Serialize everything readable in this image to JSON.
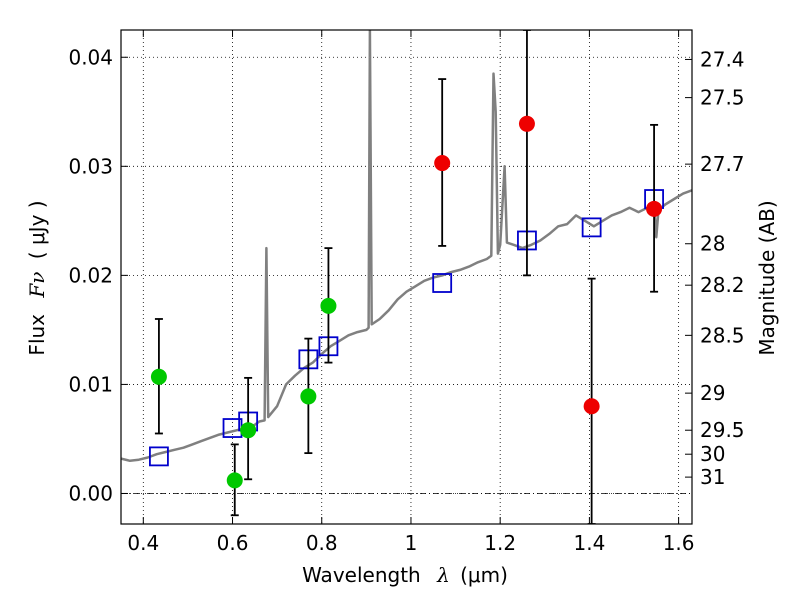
{
  "chart_data": {
    "type": "scatter",
    "xlabel": "Wavelength",
    "xlabel_symbol": "λ",
    "xlabel_unit": "(μm)",
    "ylabel": "Flux",
    "ylabel_symbol": "Fν",
    "ylabel_unit": "( μJy )",
    "y2label": "Magnitude (AB)",
    "xlim": [
      0.35,
      1.63
    ],
    "ylim": [
      -0.0028,
      0.0425
    ],
    "grid": true,
    "grid_style": "dotted",
    "x_ticks": [
      0.4,
      0.6,
      0.8,
      1.0,
      1.2,
      1.4,
      1.6
    ],
    "x_tick_labels": [
      "0.4",
      "0.6",
      "0.8",
      "1",
      "1.2",
      "1.4",
      "1.6"
    ],
    "y_ticks": [
      0.0,
      0.01,
      0.02,
      0.03,
      0.04
    ],
    "y_tick_labels": [
      "0.00",
      "0.01",
      "0.02",
      "0.03",
      "0.04"
    ],
    "y2_ticks": [
      {
        "label": "27.4",
        "flux": 0.0398
      },
      {
        "label": "27.5",
        "flux": 0.0363
      },
      {
        "label": "27.7",
        "flux": 0.0302
      },
      {
        "label": "28",
        "flux": 0.0229
      },
      {
        "label": "28.2",
        "flux": 0.0191
      },
      {
        "label": "28.5",
        "flux": 0.0145
      },
      {
        "label": "29",
        "flux": 0.0092
      },
      {
        "label": "29.5",
        "flux": 0.0058
      },
      {
        "label": "30",
        "flux": 0.0036
      },
      {
        "label": "31",
        "flux": 0.0015
      }
    ],
    "series": [
      {
        "marker": "line",
        "color": "#808080",
        "points": [
          [
            0.35,
            0.0032
          ],
          [
            0.37,
            0.003
          ],
          [
            0.39,
            0.0031
          ],
          [
            0.41,
            0.0033
          ],
          [
            0.43,
            0.0036
          ],
          [
            0.45,
            0.0038
          ],
          [
            0.47,
            0.004
          ],
          [
            0.49,
            0.0042
          ],
          [
            0.51,
            0.0045
          ],
          [
            0.53,
            0.0048
          ],
          [
            0.55,
            0.0051
          ],
          [
            0.57,
            0.0054
          ],
          [
            0.59,
            0.0056
          ],
          [
            0.61,
            0.0058
          ],
          [
            0.63,
            0.006
          ],
          [
            0.65,
            0.0063
          ],
          [
            0.66,
            0.0066
          ],
          [
            0.672,
            0.0067
          ],
          [
            0.676,
            0.0225
          ],
          [
            0.68,
            0.007
          ],
          [
            0.7,
            0.008
          ],
          [
            0.72,
            0.01
          ],
          [
            0.74,
            0.0108
          ],
          [
            0.76,
            0.0115
          ],
          [
            0.78,
            0.012
          ],
          [
            0.8,
            0.0128
          ],
          [
            0.82,
            0.0135
          ],
          [
            0.84,
            0.014
          ],
          [
            0.86,
            0.0145
          ],
          [
            0.88,
            0.0148
          ],
          [
            0.9,
            0.015
          ],
          [
            0.905,
            0.0152
          ],
          [
            0.908,
            0.0425
          ],
          [
            0.912,
            0.0155
          ],
          [
            0.93,
            0.016
          ],
          [
            0.95,
            0.0168
          ],
          [
            0.97,
            0.0178
          ],
          [
            0.99,
            0.0185
          ],
          [
            1.01,
            0.019
          ],
          [
            1.03,
            0.0195
          ],
          [
            1.05,
            0.0198
          ],
          [
            1.07,
            0.02
          ],
          [
            1.09,
            0.0203
          ],
          [
            1.11,
            0.0205
          ],
          [
            1.13,
            0.0208
          ],
          [
            1.15,
            0.0212
          ],
          [
            1.17,
            0.0215
          ],
          [
            1.18,
            0.0218
          ],
          [
            1.185,
            0.0385
          ],
          [
            1.19,
            0.035
          ],
          [
            1.195,
            0.022
          ],
          [
            1.2,
            0.0228
          ],
          [
            1.21,
            0.03
          ],
          [
            1.215,
            0.023
          ],
          [
            1.23,
            0.0228
          ],
          [
            1.25,
            0.0225
          ],
          [
            1.27,
            0.0228
          ],
          [
            1.29,
            0.0232
          ],
          [
            1.31,
            0.0238
          ],
          [
            1.33,
            0.0245
          ],
          [
            1.35,
            0.0247
          ],
          [
            1.37,
            0.0255
          ],
          [
            1.39,
            0.025
          ],
          [
            1.41,
            0.0245
          ],
          [
            1.43,
            0.025
          ],
          [
            1.45,
            0.0255
          ],
          [
            1.47,
            0.0258
          ],
          [
            1.49,
            0.0262
          ],
          [
            1.51,
            0.0258
          ],
          [
            1.53,
            0.0262
          ],
          [
            1.545,
            0.0265
          ],
          [
            1.55,
            0.0235
          ],
          [
            1.555,
            0.026
          ],
          [
            1.57,
            0.0265
          ],
          [
            1.59,
            0.027
          ],
          [
            1.61,
            0.0275
          ],
          [
            1.63,
            0.0278
          ]
        ]
      },
      {
        "marker": "square",
        "color": "#0000cc",
        "points": [
          [
            0.435,
            0.0034
          ],
          [
            0.6,
            0.006
          ],
          [
            0.635,
            0.0066
          ],
          [
            0.77,
            0.0123
          ],
          [
            0.815,
            0.0135
          ],
          [
            1.07,
            0.0193
          ],
          [
            1.26,
            0.0232
          ],
          [
            1.405,
            0.0244
          ],
          [
            1.545,
            0.027
          ]
        ]
      },
      {
        "marker": "circle",
        "color": "#00c800",
        "points": [
          {
            "x": 0.435,
            "y": 0.0107,
            "lo": 0.0055,
            "hi": 0.016
          },
          {
            "x": 0.605,
            "y": 0.0012,
            "lo": -0.002,
            "hi": 0.0045
          },
          {
            "x": 0.635,
            "y": 0.0058,
            "lo": 0.0013,
            "hi": 0.0106
          },
          {
            "x": 0.77,
            "y": 0.0089,
            "lo": 0.0037,
            "hi": 0.0142
          },
          {
            "x": 0.815,
            "y": 0.0172,
            "lo": 0.012,
            "hi": 0.0225
          }
        ]
      },
      {
        "marker": "circle",
        "color": "#ee0000",
        "points": [
          {
            "x": 1.07,
            "y": 0.0303,
            "lo": 0.0227,
            "hi": 0.038
          },
          {
            "x": 1.26,
            "y": 0.0339,
            "lo": 0.02,
            "hi": 0.0425
          },
          {
            "x": 1.405,
            "y": 0.008,
            "lo": -0.0028,
            "hi": 0.0197
          },
          {
            "x": 1.545,
            "y": 0.0261,
            "lo": 0.0185,
            "hi": 0.0338
          }
        ]
      }
    ]
  }
}
